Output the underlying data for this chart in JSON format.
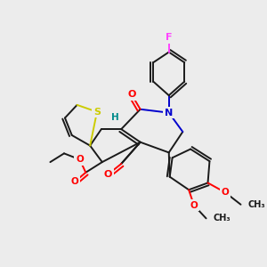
{
  "bg_color": "#ececec",
  "bond_color": "#1a1a1a",
  "atom_colors": {
    "O": "#ff0000",
    "N": "#0000cd",
    "S": "#cccc00",
    "F": "#ff44ff",
    "H": "#008b8b",
    "C": "#1a1a1a"
  },
  "lw": 1.4
}
